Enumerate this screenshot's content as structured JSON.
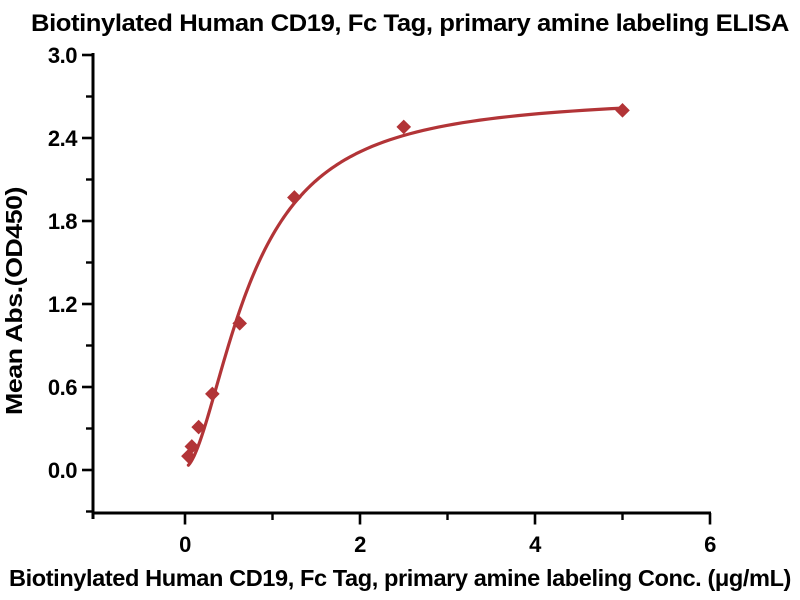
{
  "title": "Biotinylated Human CD19, Fc Tag, primary amine labeling ELISA",
  "chart_data": {
    "type": "scatter",
    "title": "Biotinylated Human CD19, Fc Tag, primary amine labeling ELISA",
    "xlabel": "Biotinylated Human CD19, Fc Tag, primary amine labeling Conc. (μg/mL)",
    "ylabel": "Mean Abs.(OD450)",
    "x": [
      0.039,
      0.078,
      0.156,
      0.3125,
      0.625,
      1.25,
      2.5,
      5
    ],
    "y": [
      0.1,
      0.17,
      0.31,
      0.55,
      1.06,
      1.97,
      2.48,
      2.6
    ],
    "x_tick_labels": [
      "0",
      "2",
      "4",
      "6"
    ],
    "x_tick_values": [
      0,
      2,
      4,
      6
    ],
    "x_minor_tick_values": [
      1,
      3,
      5
    ],
    "y_tick_labels": [
      "0.0",
      "0.6",
      "1.2",
      "1.8",
      "2.4",
      "3.0"
    ],
    "y_tick_values": [
      0,
      0.6,
      1.2,
      1.8,
      2.4,
      3.0
    ],
    "y_minor_tick_values": [
      -0.3,
      0.3,
      0.9,
      1.5,
      2.1,
      2.7
    ],
    "xlim": [
      -1.05,
      6.0
    ],
    "ylim": [
      -0.31,
      3.0
    ],
    "grid": false,
    "legend": null,
    "marker": "diamond",
    "fit_curve": {
      "model": "4PL",
      "top": 2.71,
      "bottom": 0.02,
      "ec50": 0.75,
      "hill": 1.75,
      "x_range": [
        0.039,
        5
      ]
    },
    "accent_color": "#b23437",
    "axis_color": "#000000"
  }
}
